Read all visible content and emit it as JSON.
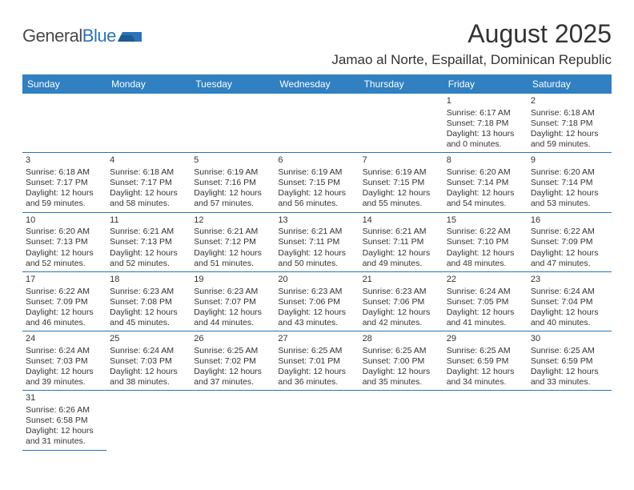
{
  "brand": {
    "part1": "General",
    "part2": "Blue"
  },
  "title": "August 2025",
  "location": "Jamao al Norte, Espaillat, Dominican Republic",
  "colors": {
    "headerBg": "#3080c2",
    "headerText": "#ffffff",
    "border": "#2a74b8",
    "text": "#333333",
    "brandBlue": "#2a74b8"
  },
  "font": {
    "title_size": 32,
    "location_size": 17,
    "header_size": 12,
    "cell_size": 10.5
  },
  "columns": [
    "Sunday",
    "Monday",
    "Tuesday",
    "Wednesday",
    "Thursday",
    "Friday",
    "Saturday"
  ],
  "weeks": [
    [
      null,
      null,
      null,
      null,
      null,
      {
        "n": "1",
        "sr": "Sunrise: 6:17 AM",
        "ss": "Sunset: 7:18 PM",
        "d1": "Daylight: 13 hours",
        "d2": "and 0 minutes."
      },
      {
        "n": "2",
        "sr": "Sunrise: 6:18 AM",
        "ss": "Sunset: 7:18 PM",
        "d1": "Daylight: 12 hours",
        "d2": "and 59 minutes."
      }
    ],
    [
      {
        "n": "3",
        "sr": "Sunrise: 6:18 AM",
        "ss": "Sunset: 7:17 PM",
        "d1": "Daylight: 12 hours",
        "d2": "and 59 minutes."
      },
      {
        "n": "4",
        "sr": "Sunrise: 6:18 AM",
        "ss": "Sunset: 7:17 PM",
        "d1": "Daylight: 12 hours",
        "d2": "and 58 minutes."
      },
      {
        "n": "5",
        "sr": "Sunrise: 6:19 AM",
        "ss": "Sunset: 7:16 PM",
        "d1": "Daylight: 12 hours",
        "d2": "and 57 minutes."
      },
      {
        "n": "6",
        "sr": "Sunrise: 6:19 AM",
        "ss": "Sunset: 7:15 PM",
        "d1": "Daylight: 12 hours",
        "d2": "and 56 minutes."
      },
      {
        "n": "7",
        "sr": "Sunrise: 6:19 AM",
        "ss": "Sunset: 7:15 PM",
        "d1": "Daylight: 12 hours",
        "d2": "and 55 minutes."
      },
      {
        "n": "8",
        "sr": "Sunrise: 6:20 AM",
        "ss": "Sunset: 7:14 PM",
        "d1": "Daylight: 12 hours",
        "d2": "and 54 minutes."
      },
      {
        "n": "9",
        "sr": "Sunrise: 6:20 AM",
        "ss": "Sunset: 7:14 PM",
        "d1": "Daylight: 12 hours",
        "d2": "and 53 minutes."
      }
    ],
    [
      {
        "n": "10",
        "sr": "Sunrise: 6:20 AM",
        "ss": "Sunset: 7:13 PM",
        "d1": "Daylight: 12 hours",
        "d2": "and 52 minutes."
      },
      {
        "n": "11",
        "sr": "Sunrise: 6:21 AM",
        "ss": "Sunset: 7:13 PM",
        "d1": "Daylight: 12 hours",
        "d2": "and 52 minutes."
      },
      {
        "n": "12",
        "sr": "Sunrise: 6:21 AM",
        "ss": "Sunset: 7:12 PM",
        "d1": "Daylight: 12 hours",
        "d2": "and 51 minutes."
      },
      {
        "n": "13",
        "sr": "Sunrise: 6:21 AM",
        "ss": "Sunset: 7:11 PM",
        "d1": "Daylight: 12 hours",
        "d2": "and 50 minutes."
      },
      {
        "n": "14",
        "sr": "Sunrise: 6:21 AM",
        "ss": "Sunset: 7:11 PM",
        "d1": "Daylight: 12 hours",
        "d2": "and 49 minutes."
      },
      {
        "n": "15",
        "sr": "Sunrise: 6:22 AM",
        "ss": "Sunset: 7:10 PM",
        "d1": "Daylight: 12 hours",
        "d2": "and 48 minutes."
      },
      {
        "n": "16",
        "sr": "Sunrise: 6:22 AM",
        "ss": "Sunset: 7:09 PM",
        "d1": "Daylight: 12 hours",
        "d2": "and 47 minutes."
      }
    ],
    [
      {
        "n": "17",
        "sr": "Sunrise: 6:22 AM",
        "ss": "Sunset: 7:09 PM",
        "d1": "Daylight: 12 hours",
        "d2": "and 46 minutes."
      },
      {
        "n": "18",
        "sr": "Sunrise: 6:23 AM",
        "ss": "Sunset: 7:08 PM",
        "d1": "Daylight: 12 hours",
        "d2": "and 45 minutes."
      },
      {
        "n": "19",
        "sr": "Sunrise: 6:23 AM",
        "ss": "Sunset: 7:07 PM",
        "d1": "Daylight: 12 hours",
        "d2": "and 44 minutes."
      },
      {
        "n": "20",
        "sr": "Sunrise: 6:23 AM",
        "ss": "Sunset: 7:06 PM",
        "d1": "Daylight: 12 hours",
        "d2": "and 43 minutes."
      },
      {
        "n": "21",
        "sr": "Sunrise: 6:23 AM",
        "ss": "Sunset: 7:06 PM",
        "d1": "Daylight: 12 hours",
        "d2": "and 42 minutes."
      },
      {
        "n": "22",
        "sr": "Sunrise: 6:24 AM",
        "ss": "Sunset: 7:05 PM",
        "d1": "Daylight: 12 hours",
        "d2": "and 41 minutes."
      },
      {
        "n": "23",
        "sr": "Sunrise: 6:24 AM",
        "ss": "Sunset: 7:04 PM",
        "d1": "Daylight: 12 hours",
        "d2": "and 40 minutes."
      }
    ],
    [
      {
        "n": "24",
        "sr": "Sunrise: 6:24 AM",
        "ss": "Sunset: 7:03 PM",
        "d1": "Daylight: 12 hours",
        "d2": "and 39 minutes."
      },
      {
        "n": "25",
        "sr": "Sunrise: 6:24 AM",
        "ss": "Sunset: 7:03 PM",
        "d1": "Daylight: 12 hours",
        "d2": "and 38 minutes."
      },
      {
        "n": "26",
        "sr": "Sunrise: 6:25 AM",
        "ss": "Sunset: 7:02 PM",
        "d1": "Daylight: 12 hours",
        "d2": "and 37 minutes."
      },
      {
        "n": "27",
        "sr": "Sunrise: 6:25 AM",
        "ss": "Sunset: 7:01 PM",
        "d1": "Daylight: 12 hours",
        "d2": "and 36 minutes."
      },
      {
        "n": "28",
        "sr": "Sunrise: 6:25 AM",
        "ss": "Sunset: 7:00 PM",
        "d1": "Daylight: 12 hours",
        "d2": "and 35 minutes."
      },
      {
        "n": "29",
        "sr": "Sunrise: 6:25 AM",
        "ss": "Sunset: 6:59 PM",
        "d1": "Daylight: 12 hours",
        "d2": "and 34 minutes."
      },
      {
        "n": "30",
        "sr": "Sunrise: 6:25 AM",
        "ss": "Sunset: 6:59 PM",
        "d1": "Daylight: 12 hours",
        "d2": "and 33 minutes."
      }
    ],
    [
      {
        "n": "31",
        "sr": "Sunrise: 6:26 AM",
        "ss": "Sunset: 6:58 PM",
        "d1": "Daylight: 12 hours",
        "d2": "and 31 minutes."
      },
      null,
      null,
      null,
      null,
      null,
      null
    ]
  ]
}
